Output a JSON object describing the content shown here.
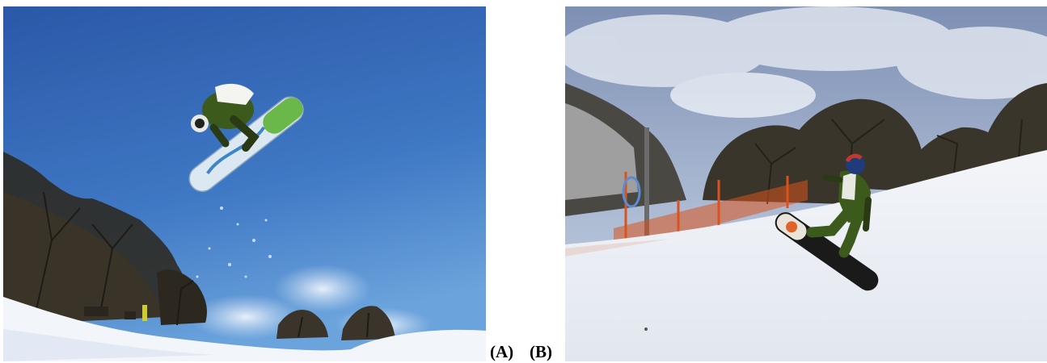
{
  "panels": [
    {
      "label": "(A)",
      "scene": "snowboarder-air-blue-sky"
    },
    {
      "label": "(B)",
      "scene": "snowboarder-halfpipe-wall"
    }
  ],
  "colors": {
    "sky_a_top": "#2c5fb0",
    "sky_a_bottom": "#5a94d4",
    "sky_b": "#8fa2c4",
    "snow": "#f4f6fa",
    "jacket_green": "#3c5a1c",
    "board_a": "#dbe8f2",
    "board_b": "#1a1a1a",
    "fence_orange": "#d9531e"
  }
}
